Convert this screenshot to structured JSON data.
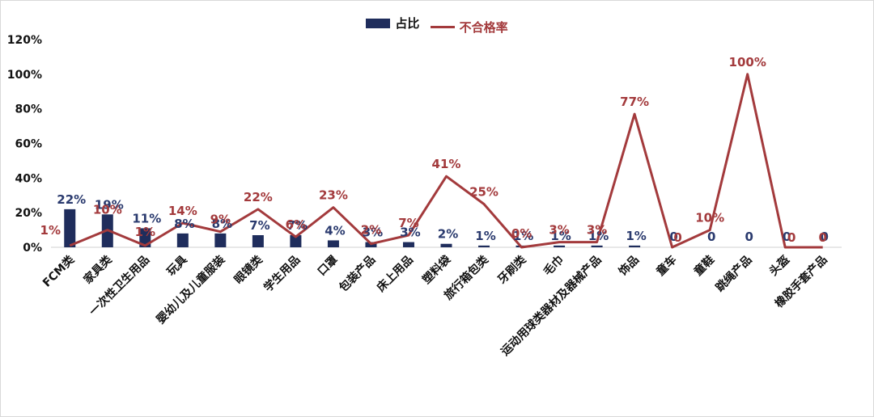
{
  "chart_data": {
    "type": "bar",
    "legend": {
      "position": "top-center"
    },
    "categories": [
      "FCM类",
      "家具类",
      "一次性卫生用品",
      "玩具",
      "婴幼儿及儿童服装",
      "眼镜类",
      "学生用品",
      "口罩",
      "包装产品",
      "床上用品",
      "塑料袋",
      "旅行箱包类",
      "牙刷类",
      "毛巾",
      "运动用球类器材及器械产品",
      "饰品",
      "童车",
      "童鞋",
      "跳绳产品",
      "头盔",
      "橡胶手套产品"
    ],
    "ylim": [
      0,
      120
    ],
    "yticks": [
      "0%",
      "20%",
      "40%",
      "60%",
      "80%",
      "100%",
      "120%"
    ],
    "grid": false,
    "colors": {
      "bar": "#1f2d5c",
      "line": "#a33a3c"
    },
    "series": [
      {
        "name": "占比",
        "kind": "bar",
        "values": [
          22,
          19,
          11,
          8,
          8,
          7,
          7,
          4,
          3,
          3,
          2,
          1,
          1,
          1,
          1,
          1,
          0,
          0,
          0,
          0,
          0
        ],
        "labels": [
          "22%",
          "19%",
          "11%",
          "8%",
          "8%",
          "7%",
          "7%",
          "4%",
          "3%",
          "3%",
          "2%",
          "1%",
          "1%",
          "1%",
          "1%",
          "1%",
          "0",
          "0",
          "0",
          "0",
          "0"
        ]
      },
      {
        "name": "不合格率",
        "kind": "line",
        "values": [
          1,
          10,
          1,
          14,
          9,
          22,
          6,
          23,
          2,
          7,
          41,
          25,
          0,
          3,
          3,
          77,
          0,
          10,
          100,
          0,
          0
        ],
        "labels": [
          "1%",
          "10%",
          "1%",
          "14%",
          "9%",
          "22%",
          "6%",
          "23%",
          "2%",
          "7%",
          "41%",
          "25%",
          "0%",
          "3%",
          "3%",
          "77%",
          "0",
          "10%",
          "100%",
          "0",
          "0"
        ]
      }
    ]
  }
}
